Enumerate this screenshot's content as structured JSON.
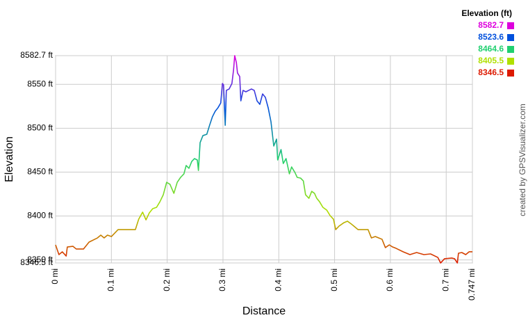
{
  "chart_data": {
    "type": "line",
    "xlabel": "Distance",
    "ylabel": "Elevation",
    "credit": "created by GPSVisualizer.com",
    "legend": {
      "title": "Elevation (ft)",
      "corner": "top-right",
      "entries": [
        {
          "value": 8582.7,
          "color": "#dd00dd"
        },
        {
          "value": 8523.6,
          "color": "#0050dd"
        },
        {
          "value": 8464.6,
          "color": "#20d070"
        },
        {
          "value": 8405.5,
          "color": "#b0e000"
        },
        {
          "value": 8346.5,
          "color": "#dd1a00"
        }
      ]
    },
    "xlim": [
      0,
      0.747
    ],
    "ylim": [
      8346.5,
      8582.7
    ],
    "grid": true,
    "xticks": [
      {
        "value": 0,
        "label": "0 mi"
      },
      {
        "value": 0.1,
        "label": "0.1 mi"
      },
      {
        "value": 0.2,
        "label": "0.2 mi"
      },
      {
        "value": 0.3,
        "label": "0.3 mi"
      },
      {
        "value": 0.4,
        "label": "0.4 mi"
      },
      {
        "value": 0.5,
        "label": "0.5 mi"
      },
      {
        "value": 0.6,
        "label": "0.6 mi"
      },
      {
        "value": 0.7,
        "label": "0.7 mi"
      },
      {
        "value": 0.747,
        "label": "0.747 mi"
      }
    ],
    "yticks": [
      {
        "value": 8346.5,
        "label": "8346.5 ft"
      },
      {
        "value": 8350,
        "label": "8350 ft"
      },
      {
        "value": 8400,
        "label": "8400 ft"
      },
      {
        "value": 8450,
        "label": "8450 ft"
      },
      {
        "value": 8500,
        "label": "8500 ft"
      },
      {
        "value": 8550,
        "label": "8550 ft"
      },
      {
        "value": 8582.7,
        "label": "8582.7 ft"
      }
    ],
    "x": [
      0,
      0.006,
      0.012,
      0.019,
      0.021,
      0.031,
      0.037,
      0.05,
      0.06,
      0.075,
      0.081,
      0.087,
      0.093,
      0.1,
      0.112,
      0.125,
      0.143,
      0.149,
      0.156,
      0.162,
      0.168,
      0.174,
      0.181,
      0.187,
      0.193,
      0.199,
      0.205,
      0.212,
      0.218,
      0.224,
      0.23,
      0.234,
      0.239,
      0.244,
      0.249,
      0.254,
      0.256,
      0.259,
      0.264,
      0.271,
      0.276,
      0.281,
      0.286,
      0.291,
      0.296,
      0.299,
      0.301,
      0.304,
      0.306,
      0.311,
      0.316,
      0.319,
      0.321,
      0.324,
      0.326,
      0.33,
      0.332,
      0.336,
      0.341,
      0.346,
      0.351,
      0.356,
      0.361,
      0.366,
      0.371,
      0.376,
      0.381,
      0.386,
      0.391,
      0.396,
      0.398,
      0.404,
      0.408,
      0.413,
      0.419,
      0.423,
      0.429,
      0.433,
      0.439,
      0.444,
      0.448,
      0.454,
      0.459,
      0.464,
      0.468,
      0.473,
      0.479,
      0.486,
      0.492,
      0.498,
      0.502,
      0.508,
      0.517,
      0.523,
      0.53,
      0.536,
      0.542,
      0.554,
      0.56,
      0.566,
      0.573,
      0.579,
      0.585,
      0.591,
      0.598,
      0.604,
      0.61,
      0.623,
      0.635,
      0.647,
      0.66,
      0.672,
      0.685,
      0.69,
      0.697,
      0.71,
      0.715,
      0.72,
      0.722,
      0.728,
      0.735,
      0.741,
      0.747
    ],
    "values": [
      8367.1,
      8356.0,
      8359.2,
      8354.4,
      8364.7,
      8365.5,
      8362.4,
      8362.4,
      8370.3,
      8375.0,
      8378.2,
      8375.0,
      8378.2,
      8376.6,
      8384.5,
      8384.5,
      8384.5,
      8396.4,
      8404.4,
      8395.6,
      8403.6,
      8408.3,
      8409.9,
      8416.3,
      8424.2,
      8438.4,
      8436.1,
      8425.8,
      8438.4,
      8444.0,
      8448.0,
      8457.5,
      8454.3,
      8462.2,
      8465.4,
      8463.8,
      8451.9,
      8483.6,
      8491.6,
      8493.1,
      8503.4,
      8513.0,
      8519.3,
      8523.3,
      8528.8,
      8551.0,
      8549.4,
      8503.4,
      8543.1,
      8544.7,
      8551.0,
      8566.8,
      8582.7,
      8574.8,
      8562.9,
      8558.9,
      8531.2,
      8543.1,
      8541.5,
      8543.1,
      8544.7,
      8543.1,
      8531.2,
      8527.2,
      8539.1,
      8535.1,
      8523.3,
      8507.4,
      8479.7,
      8487.6,
      8463.8,
      8475.7,
      8459.8,
      8465.4,
      8448.0,
      8455.9,
      8449.5,
      8444.0,
      8443.2,
      8440.0,
      8424.2,
      8420.2,
      8428.1,
      8425.8,
      8420.2,
      8416.3,
      8409.9,
      8406.7,
      8400.4,
      8396.4,
      8384.5,
      8388.5,
      8392.5,
      8394.1,
      8390.9,
      8387.7,
      8384.5,
      8384.5,
      8384.5,
      8375.0,
      8376.6,
      8375.0,
      8373.5,
      8364.0,
      8367.1,
      8364.7,
      8363.2,
      8359.2,
      8356.0,
      8358.4,
      8356.0,
      8356.8,
      8352.8,
      8346.5,
      8351.3,
      8352.1,
      8351.3,
      8346.5,
      8357.6,
      8358.4,
      8356.0,
      8359.2,
      8359.2
    ]
  }
}
